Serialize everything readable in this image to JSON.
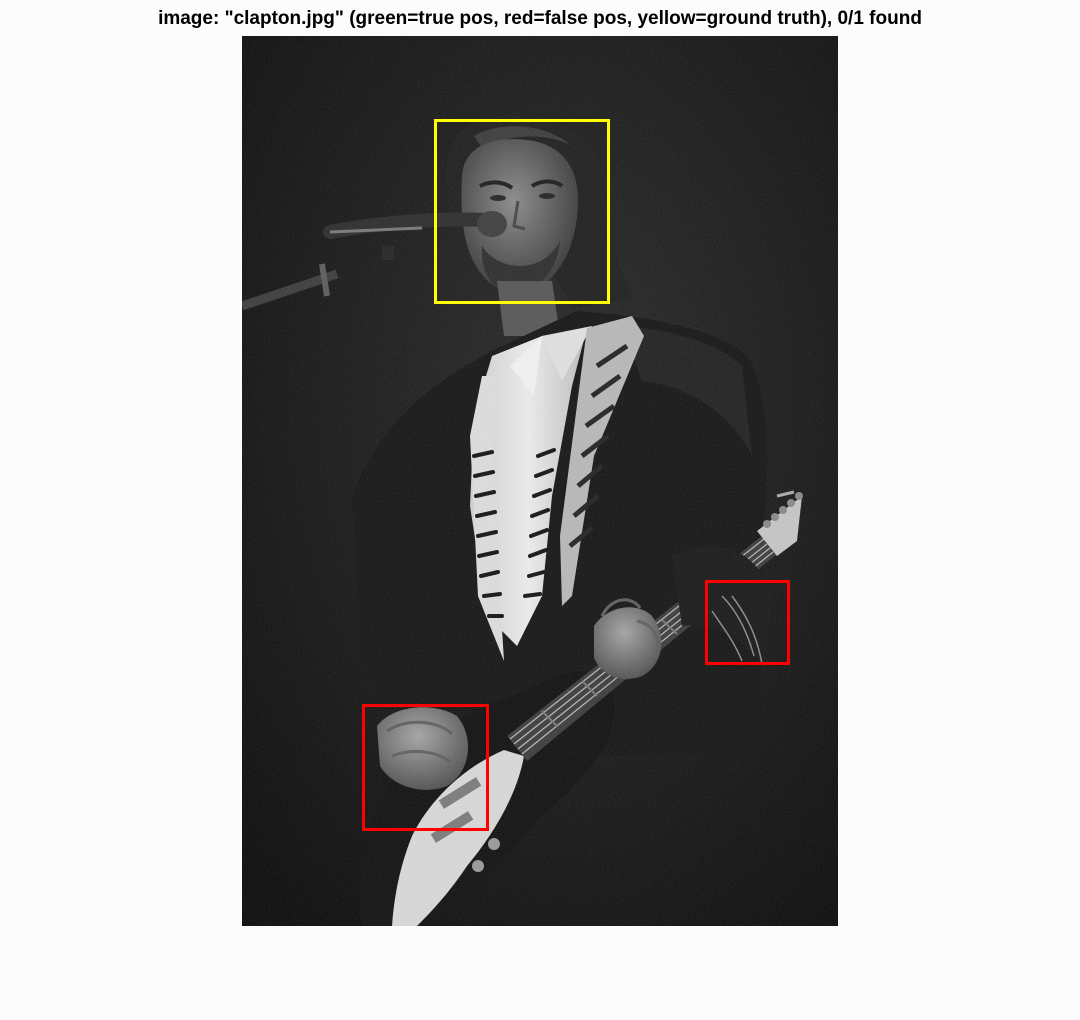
{
  "title": "image: \"clapton.jpg\" (green=true pos, red=false pos, yellow=ground truth), 0/1 found",
  "colors": {
    "background": "#fcfcfc",
    "ground_truth": "#ffff00",
    "false_positive": "#ff0000",
    "true_positive": "#00ff00"
  },
  "summary": {
    "found": 0,
    "total": 1
  },
  "detections": {
    "ground_truth_count": 1,
    "false_positive_count": 2,
    "true_positive_count": 0
  }
}
